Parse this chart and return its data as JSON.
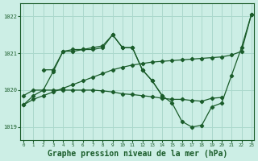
{
  "background_color": "#cceee5",
  "grid_color": "#aad8cc",
  "line_color": "#1a5c2a",
  "xlabel": "Graphe pression niveau de la mer (hPa)",
  "xlabel_fontsize": 7.0,
  "ylabel_values": [
    1019,
    1020,
    1021,
    1022
  ],
  "xlim": [
    -0.3,
    23.3
  ],
  "ylim": [
    1018.65,
    1022.35
  ],
  "series": [
    {
      "x": [
        0,
        1,
        2,
        3,
        4,
        5,
        6,
        7,
        8,
        9,
        10,
        11,
        12,
        13,
        14,
        15,
        16,
        17,
        18,
        19,
        20,
        21,
        22,
        23
      ],
      "y": [
        1019.6,
        1019.75,
        1019.85,
        1019.95,
        1020.05,
        1020.15,
        1020.25,
        1020.35,
        1020.45,
        1020.55,
        1020.62,
        1020.68,
        1020.72,
        1020.76,
        1020.78,
        1020.8,
        1020.82,
        1020.84,
        1020.86,
        1020.88,
        1020.9,
        1020.95,
        1021.05,
        1022.05
      ]
    },
    {
      "x": [
        0,
        1,
        2,
        3,
        4,
        5,
        6,
        7,
        8,
        9,
        10,
        11,
        12,
        13,
        14,
        15,
        16,
        17,
        18,
        19,
        20,
        21,
        22,
        23
      ],
      "y": [
        1019.6,
        1019.85,
        1020.0,
        1020.5,
        1021.05,
        1021.05,
        1021.1,
        1021.1,
        1021.15,
        1021.5,
        1021.15,
        1021.15,
        1020.55,
        1020.25,
        1019.85,
        1019.65,
        1019.15,
        1019.0,
        1019.05,
        1019.55,
        1019.65,
        1020.4,
        1021.15,
        1022.05
      ]
    },
    {
      "x": [
        2,
        3,
        4,
        5,
        6,
        7,
        8,
        9,
        10,
        11,
        12,
        13,
        14
      ],
      "y": [
        1020.55,
        1020.55,
        1021.05,
        1021.1,
        1021.1,
        1021.15,
        1021.2,
        1021.5,
        1021.15,
        1021.15,
        1020.55,
        1020.25,
        1019.85
      ]
    },
    {
      "x": [
        0,
        1,
        2,
        3,
        4,
        5,
        6,
        7,
        8,
        9,
        10,
        11,
        12,
        13,
        14,
        15,
        16,
        17,
        18,
        19,
        20
      ],
      "y": [
        1019.85,
        1020.0,
        1020.0,
        1020.0,
        1020.0,
        1020.0,
        1020.0,
        1020.0,
        1019.98,
        1019.95,
        1019.9,
        1019.88,
        1019.85,
        1019.82,
        1019.78,
        1019.75,
        1019.75,
        1019.72,
        1019.7,
        1019.78,
        1019.8
      ]
    }
  ],
  "marker": "D",
  "markersize": 2.2,
  "linewidth": 0.9
}
